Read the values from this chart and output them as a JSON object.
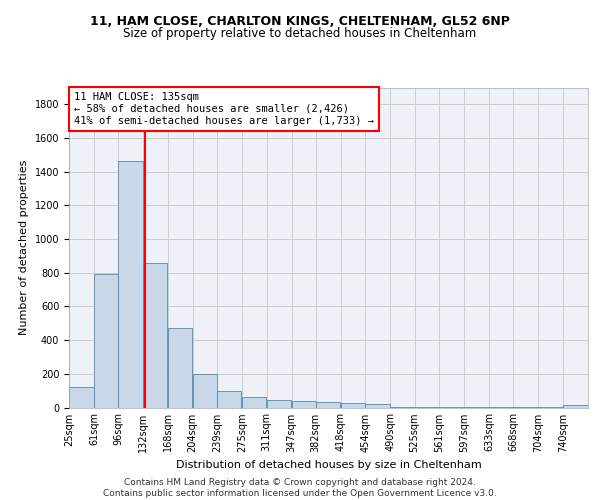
{
  "title1": "11, HAM CLOSE, CHARLTON KINGS, CHELTENHAM, GL52 6NP",
  "title2": "Size of property relative to detached houses in Cheltenham",
  "xlabel": "Distribution of detached houses by size in Cheltenham",
  "ylabel": "Number of detached properties",
  "footer1": "Contains HM Land Registry data © Crown copyright and database right 2024.",
  "footer2": "Contains public sector information licensed under the Open Government Licence v3.0.",
  "annotation_title": "11 HAM CLOSE: 135sqm",
  "annotation_line1": "← 58% of detached houses are smaller (2,426)",
  "annotation_line2": "41% of semi-detached houses are larger (1,733) →",
  "bar_color": "#c8d8e8",
  "bar_edge_color": "#5588aa",
  "grid_color": "#cccccc",
  "bg_color": "#eef2f8",
  "red_line_x": 135,
  "categories": [
    "25sqm",
    "61sqm",
    "96sqm",
    "132sqm",
    "168sqm",
    "204sqm",
    "239sqm",
    "275sqm",
    "311sqm",
    "347sqm",
    "382sqm",
    "418sqm",
    "454sqm",
    "490sqm",
    "525sqm",
    "561sqm",
    "597sqm",
    "633sqm",
    "668sqm",
    "704sqm",
    "740sqm"
  ],
  "bin_edges": [
    25,
    61,
    96,
    132,
    168,
    204,
    239,
    275,
    311,
    347,
    382,
    418,
    454,
    490,
    525,
    561,
    597,
    633,
    668,
    704,
    740
  ],
  "bin_width": 36,
  "values": [
    120,
    795,
    1462,
    860,
    472,
    200,
    100,
    65,
    45,
    38,
    30,
    25,
    20,
    5,
    5,
    3,
    3,
    2,
    2,
    2,
    15
  ],
  "ylim": [
    0,
    1900
  ],
  "yticks": [
    0,
    200,
    400,
    600,
    800,
    1000,
    1200,
    1400,
    1600,
    1800
  ],
  "title_fontsize": 9,
  "subtitle_fontsize": 8.5,
  "ylabel_fontsize": 8,
  "xlabel_fontsize": 8,
  "tick_fontsize": 7,
  "footer_fontsize": 6.5,
  "ann_fontsize": 7.5
}
